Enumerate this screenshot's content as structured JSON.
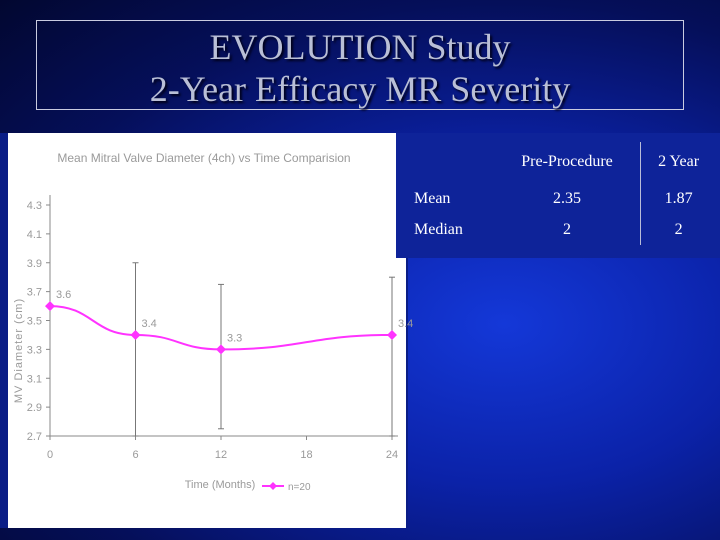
{
  "slide": {
    "title_line1": "EVOLUTION Study",
    "title_line2": "2-Year Efficacy MR Severity"
  },
  "table": {
    "headers": [
      "",
      "Pre-Procedure",
      "2 Year"
    ],
    "rows": [
      {
        "label": "Mean",
        "values": [
          "2.35",
          "1.87"
        ]
      },
      {
        "label": "Median",
        "values": [
          "2",
          "2"
        ]
      }
    ]
  },
  "colors": {
    "line": "#ff33ff",
    "chart_background": "#ffffff",
    "slide_background": "#0b22a8"
  },
  "chart_data": {
    "type": "line",
    "title": "Mean Mitral Valve Diameter (4ch) vs Time Comparision",
    "xlabel": "Time (Months)",
    "ylabel": "MV Diameter (cm)",
    "x_ticks": [
      "0",
      "6",
      "12",
      "18",
      "24"
    ],
    "y_ticks": [
      "4.3",
      "4.1",
      "3.9",
      "3.7",
      "3.5",
      "3.3",
      "3.1",
      "2.9",
      "2.7"
    ],
    "xlim": [
      0,
      24
    ],
    "ylim": [
      2.7,
      4.3
    ],
    "grid": false,
    "legend_position": "bottom",
    "series": [
      {
        "name": "n=20",
        "x": [
          0,
          6,
          12,
          24
        ],
        "y": [
          3.6,
          3.4,
          3.3,
          3.4
        ],
        "labels": [
          "3.6",
          "3.4",
          "3.3",
          "3.4"
        ],
        "error_bars": [
          null,
          {
            "low": 2.7,
            "high": 3.9
          },
          {
            "low": 2.75,
            "high": 3.75
          },
          {
            "low": 2.7,
            "high": 3.8
          }
        ]
      }
    ]
  }
}
